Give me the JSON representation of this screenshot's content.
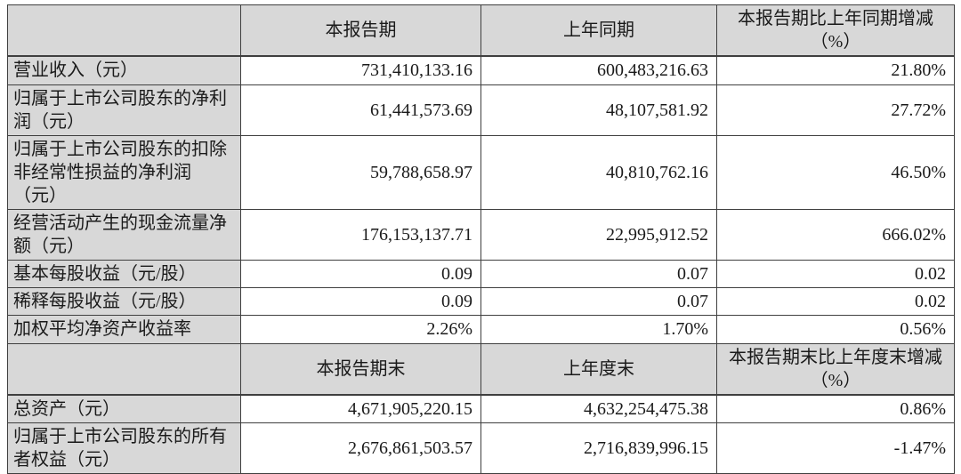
{
  "table": {
    "period_header": {
      "corner": "",
      "current_label": "本报告期",
      "prior_label": "上年同期",
      "change_label": "本报告期比上年同期增减\n（%）"
    },
    "period_rows": [
      {
        "label": "营业收入（元）",
        "current": "731,410,133.16",
        "prior": "600,483,216.63",
        "change": "21.80%"
      },
      {
        "label": "归属于上市公司股东的净利\n润（元）",
        "current": "61,441,573.69",
        "prior": "48,107,581.92",
        "change": "27.72%"
      },
      {
        "label": "归属于上市公司股东的扣除\n非经常性损益的净利润\n（元）",
        "current": "59,788,658.97",
        "prior": "40,810,762.16",
        "change": "46.50%"
      },
      {
        "label": "经营活动产生的现金流量净\n额（元）",
        "current": "176,153,137.71",
        "prior": "22,995,912.52",
        "change": "666.02%"
      },
      {
        "label": "基本每股收益（元/股）",
        "current": "0.09",
        "prior": "0.07",
        "change": "0.02"
      },
      {
        "label": "稀释每股收益（元/股）",
        "current": "0.09",
        "prior": "0.07",
        "change": "0.02"
      },
      {
        "label": "加权平均净资产收益率",
        "current": "2.26%",
        "prior": "1.70%",
        "change": "0.56%"
      }
    ],
    "eop_header": {
      "corner": "",
      "current_label": "本报告期末",
      "prior_label": "上年度末",
      "change_label": "本报告期末比上年度末增减\n（%）"
    },
    "eop_rows": [
      {
        "label": "总资产（元）",
        "current": "4,671,905,220.15",
        "prior": "4,632,254,475.38",
        "change": "0.86%"
      },
      {
        "label": "归属于上市公司股东的所有\n者权益（元）",
        "current": "2,676,861,503.57",
        "prior": "2,716,839,996.15",
        "change": "-1.47%"
      }
    ],
    "colors": {
      "header_bg": "#d8d8d8",
      "cell_bg": "#ffffff",
      "border": "#3f3f3f",
      "text": "#1a1a1a",
      "page_bg": "#ffffff"
    }
  }
}
